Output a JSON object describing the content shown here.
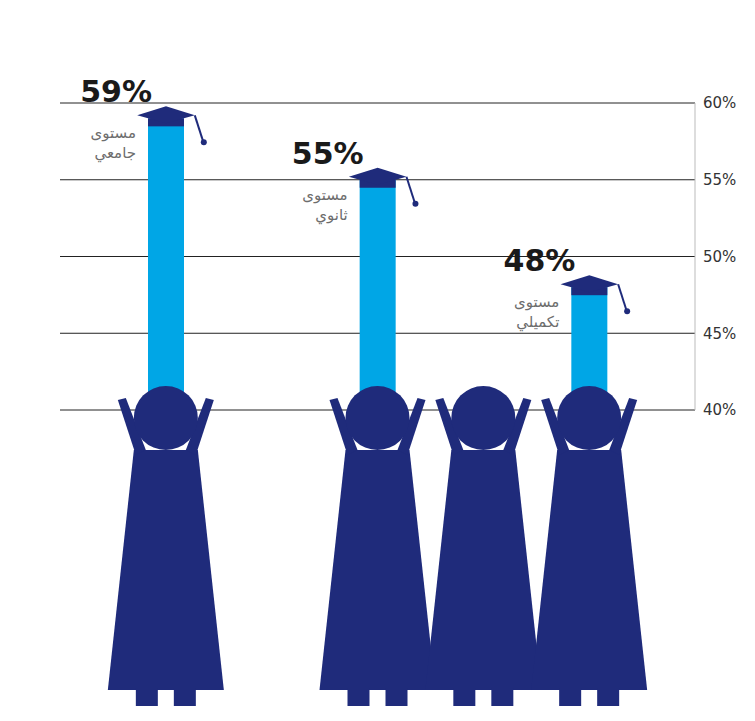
{
  "chart_data": {
    "type": "bar",
    "categories": [
      "مستوى جامعي",
      "مستوى ثانوي",
      "مستوى تكميلي"
    ],
    "values": [
      59,
      55,
      48
    ],
    "value_labels": [
      "59%",
      "55%",
      "48%"
    ],
    "color": "#00a6e6",
    "ylim": [
      40,
      60
    ],
    "yticks": [
      {
        "value": 40,
        "label": "40%"
      },
      {
        "value": 45,
        "label": "45%"
      },
      {
        "value": 50,
        "label": "50%"
      },
      {
        "value": 55,
        "label": "55%"
      },
      {
        "value": 60,
        "label": "60%"
      }
    ],
    "grid": true,
    "data_labels": true,
    "tick_labels": "y"
  }
}
